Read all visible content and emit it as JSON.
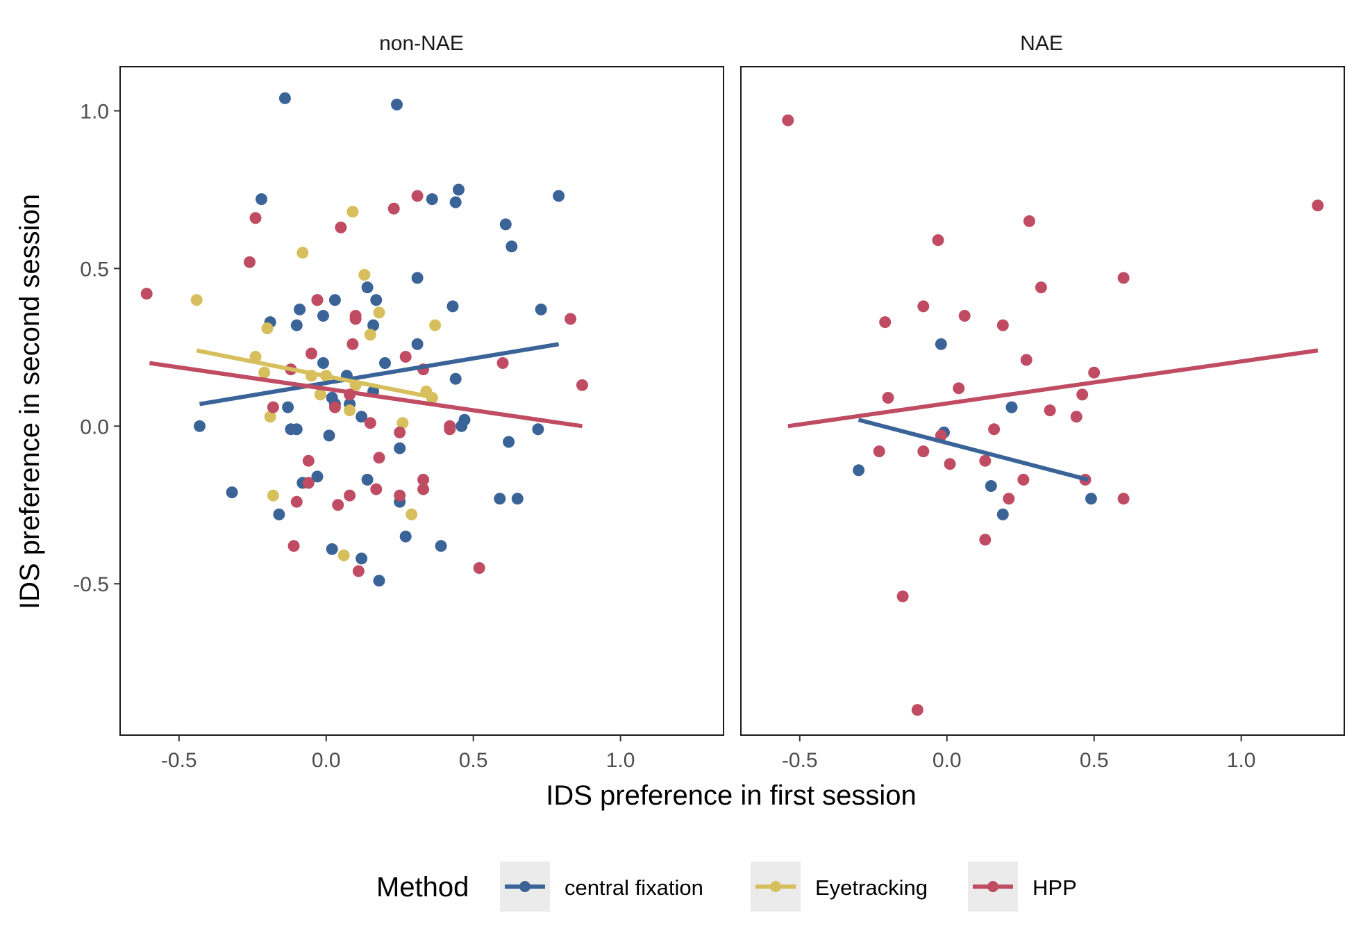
{
  "chart_data": {
    "type": "scatter",
    "xlabel": "IDS preference in first session",
    "ylabel": "IDS preference in second session",
    "xlim": [
      -0.7,
      1.35
    ],
    "ylim": [
      -0.98,
      1.14
    ],
    "x_ticks": [
      -0.5,
      0.0,
      0.5,
      1.0
    ],
    "x_tick_labels": [
      "-0.5",
      "0.0",
      "0.5",
      "1.0"
    ],
    "y_ticks": [
      -0.5,
      0.0,
      0.5,
      1.0
    ],
    "y_tick_labels": [
      "-0.5",
      "0.0",
      "0.5",
      "1.0"
    ],
    "grid": false,
    "legend": {
      "title": "Method",
      "position": "bottom",
      "entries": [
        {
          "label": "central fixation",
          "color": "#3a6398"
        },
        {
          "label": "Eyetracking",
          "color": "#d6bf5c"
        },
        {
          "label": "HPP",
          "color": "#c04c63"
        }
      ]
    },
    "panels": [
      {
        "title": "non-NAE",
        "series": [
          {
            "name": "central fixation",
            "color": "#3a6398",
            "points": [
              [
                -0.43,
                0.0
              ],
              [
                -0.32,
                -0.21
              ],
              [
                -0.22,
                0.72
              ],
              [
                -0.19,
                0.33
              ],
              [
                -0.16,
                -0.28
              ],
              [
                -0.14,
                1.04
              ],
              [
                -0.13,
                0.06
              ],
              [
                -0.12,
                -0.01
              ],
              [
                -0.1,
                0.32
              ],
              [
                -0.1,
                -0.01
              ],
              [
                -0.09,
                0.37
              ],
              [
                -0.08,
                -0.18
              ],
              [
                -0.03,
                0.4
              ],
              [
                -0.03,
                -0.16
              ],
              [
                -0.01,
                0.2
              ],
              [
                -0.01,
                0.35
              ],
              [
                0.01,
                -0.03
              ],
              [
                0.02,
                0.09
              ],
              [
                0.02,
                -0.39
              ],
              [
                0.03,
                0.4
              ],
              [
                0.03,
                0.07
              ],
              [
                0.07,
                0.16
              ],
              [
                0.08,
                0.07
              ],
              [
                0.12,
                0.03
              ],
              [
                0.12,
                -0.42
              ],
              [
                0.14,
                0.44
              ],
              [
                0.14,
                -0.17
              ],
              [
                0.16,
                0.11
              ],
              [
                0.16,
                0.32
              ],
              [
                0.17,
                0.4
              ],
              [
                0.18,
                -0.49
              ],
              [
                0.2,
                0.2
              ],
              [
                0.24,
                1.02
              ],
              [
                0.25,
                -0.07
              ],
              [
                0.25,
                -0.24
              ],
              [
                0.27,
                -0.35
              ],
              [
                0.31,
                0.47
              ],
              [
                0.31,
                0.26
              ],
              [
                0.36,
                0.72
              ],
              [
                0.39,
                -0.38
              ],
              [
                0.43,
                0.38
              ],
              [
                0.44,
                0.15
              ],
              [
                0.44,
                0.71
              ],
              [
                0.45,
                0.75
              ],
              [
                0.46,
                0.0
              ],
              [
                0.47,
                0.02
              ],
              [
                0.59,
                -0.23
              ],
              [
                0.61,
                0.64
              ],
              [
                0.62,
                -0.05
              ],
              [
                0.63,
                0.57
              ],
              [
                0.65,
                -0.23
              ],
              [
                0.72,
                -0.01
              ],
              [
                0.73,
                0.37
              ],
              [
                0.79,
                0.73
              ]
            ],
            "fit": [
              [
                -0.43,
                0.07
              ],
              [
                0.79,
                0.26
              ]
            ]
          },
          {
            "name": "Eyetracking",
            "color": "#d6bf5c",
            "points": [
              [
                -0.44,
                0.4
              ],
              [
                -0.24,
                0.22
              ],
              [
                -0.21,
                0.17
              ],
              [
                -0.2,
                0.31
              ],
              [
                -0.19,
                0.03
              ],
              [
                -0.18,
                -0.22
              ],
              [
                -0.08,
                0.55
              ],
              [
                -0.05,
                0.16
              ],
              [
                -0.02,
                0.1
              ],
              [
                0.0,
                0.16
              ],
              [
                0.08,
                0.05
              ],
              [
                0.09,
                0.68
              ],
              [
                0.1,
                0.13
              ],
              [
                0.13,
                0.48
              ],
              [
                0.15,
                0.29
              ],
              [
                0.18,
                0.36
              ],
              [
                0.26,
                0.01
              ],
              [
                0.29,
                -0.28
              ],
              [
                0.34,
                0.11
              ],
              [
                0.36,
                0.09
              ],
              [
                0.37,
                0.32
              ],
              [
                0.06,
                -0.41
              ]
            ],
            "fit": [
              [
                -0.44,
                0.24
              ],
              [
                0.37,
                0.09
              ]
            ]
          },
          {
            "name": "HPP",
            "color": "#c04c63",
            "points": [
              [
                -0.61,
                0.42
              ],
              [
                -0.26,
                0.52
              ],
              [
                -0.24,
                0.66
              ],
              [
                -0.18,
                0.06
              ],
              [
                -0.12,
                0.18
              ],
              [
                -0.11,
                -0.38
              ],
              [
                -0.1,
                -0.24
              ],
              [
                -0.06,
                -0.11
              ],
              [
                -0.06,
                -0.18
              ],
              [
                -0.05,
                0.23
              ],
              [
                -0.03,
                0.4
              ],
              [
                0.03,
                0.06
              ],
              [
                0.04,
                -0.25
              ],
              [
                0.05,
                0.63
              ],
              [
                0.08,
                -0.22
              ],
              [
                0.08,
                0.1
              ],
              [
                0.09,
                0.26
              ],
              [
                0.1,
                0.34
              ],
              [
                0.1,
                0.35
              ],
              [
                0.11,
                -0.46
              ],
              [
                0.15,
                0.01
              ],
              [
                0.17,
                -0.2
              ],
              [
                0.18,
                -0.1
              ],
              [
                0.23,
                0.69
              ],
              [
                0.25,
                -0.02
              ],
              [
                0.25,
                -0.22
              ],
              [
                0.27,
                0.22
              ],
              [
                0.31,
                0.73
              ],
              [
                0.33,
                0.18
              ],
              [
                0.33,
                -0.17
              ],
              [
                0.33,
                -0.2
              ],
              [
                0.42,
                0.0
              ],
              [
                0.42,
                -0.01
              ],
              [
                0.52,
                -0.45
              ],
              [
                0.6,
                0.2
              ],
              [
                0.83,
                0.34
              ],
              [
                0.87,
                0.13
              ]
            ],
            "fit": [
              [
                -0.6,
                0.2
              ],
              [
                0.87,
                0.0
              ]
            ]
          }
        ]
      },
      {
        "title": "NAE",
        "series": [
          {
            "name": "central fixation",
            "color": "#3a6398",
            "points": [
              [
                -0.3,
                -0.14
              ],
              [
                -0.02,
                0.26
              ],
              [
                -0.01,
                -0.02
              ],
              [
                0.15,
                -0.19
              ],
              [
                0.19,
                -0.28
              ],
              [
                0.22,
                0.06
              ],
              [
                0.49,
                -0.23
              ]
            ],
            "fit": [
              [
                -0.3,
                0.02
              ],
              [
                0.48,
                -0.17
              ]
            ]
          },
          {
            "name": "HPP",
            "color": "#c04c63",
            "points": [
              [
                -0.54,
                0.97
              ],
              [
                -0.23,
                -0.08
              ],
              [
                -0.21,
                0.33
              ],
              [
                -0.2,
                0.09
              ],
              [
                -0.15,
                -0.54
              ],
              [
                -0.1,
                -0.9
              ],
              [
                -0.08,
                0.38
              ],
              [
                -0.08,
                -0.08
              ],
              [
                -0.03,
                0.59
              ],
              [
                -0.02,
                -0.03
              ],
              [
                0.01,
                -0.12
              ],
              [
                0.04,
                0.12
              ],
              [
                0.06,
                0.35
              ],
              [
                0.13,
                -0.11
              ],
              [
                0.13,
                -0.36
              ],
              [
                0.16,
                -0.01
              ],
              [
                0.19,
                0.32
              ],
              [
                0.21,
                -0.23
              ],
              [
                0.26,
                -0.17
              ],
              [
                0.27,
                0.21
              ],
              [
                0.28,
                0.65
              ],
              [
                0.32,
                0.44
              ],
              [
                0.35,
                0.05
              ],
              [
                0.44,
                0.03
              ],
              [
                0.46,
                0.1
              ],
              [
                0.47,
                -0.17
              ],
              [
                0.5,
                0.17
              ],
              [
                0.6,
                -0.23
              ],
              [
                0.6,
                0.47
              ],
              [
                1.26,
                0.7
              ]
            ],
            "fit": [
              [
                -0.54,
                0.0
              ],
              [
                1.26,
                0.24
              ]
            ]
          }
        ]
      }
    ]
  }
}
